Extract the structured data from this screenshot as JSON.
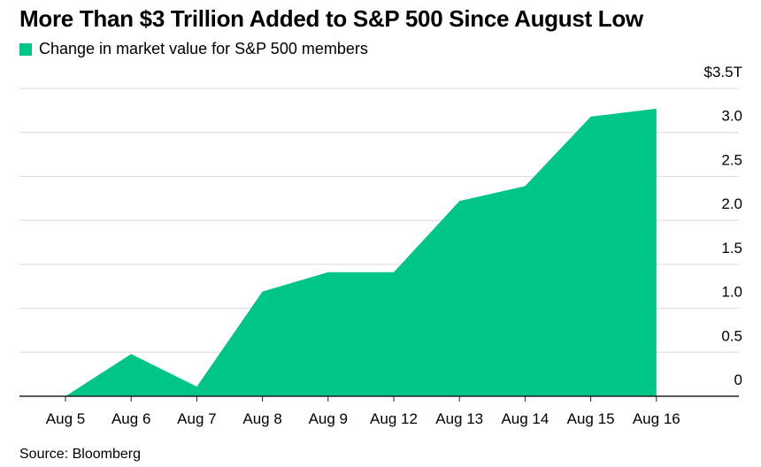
{
  "title": "More Than $3 Trillion Added to S&P 500 Since August Low",
  "legend": {
    "label": "Change in market value for S&P 500 members",
    "color": "#00c589"
  },
  "source": "Source: Bloomberg",
  "chart_data": {
    "type": "area",
    "title": "More Than $3 Trillion Added to S&P 500 Since August Low",
    "categories": [
      "Aug 5",
      "Aug 6",
      "Aug 7",
      "Aug 8",
      "Aug 9",
      "Aug 12",
      "Aug 13",
      "Aug 14",
      "Aug 15",
      "Aug 16"
    ],
    "series": [
      {
        "name": "Change in market value for S&P 500 members",
        "values": [
          0.0,
          0.48,
          0.11,
          1.19,
          1.41,
          1.41,
          2.22,
          2.39,
          3.18,
          3.27
        ],
        "color": "#00c589"
      }
    ],
    "yticks": [
      0,
      0.5,
      1.0,
      1.5,
      2.0,
      2.5,
      3.0,
      3.5
    ],
    "ytick_labels": [
      "0",
      "0.5",
      "1.0",
      "1.5",
      "2.0",
      "2.5",
      "3.0",
      "$3.5T"
    ],
    "ylim": [
      0,
      3.5
    ],
    "y_axis_position": "right",
    "grid": true,
    "legend_position": "top-left",
    "xlabel": "",
    "ylabel": ""
  }
}
